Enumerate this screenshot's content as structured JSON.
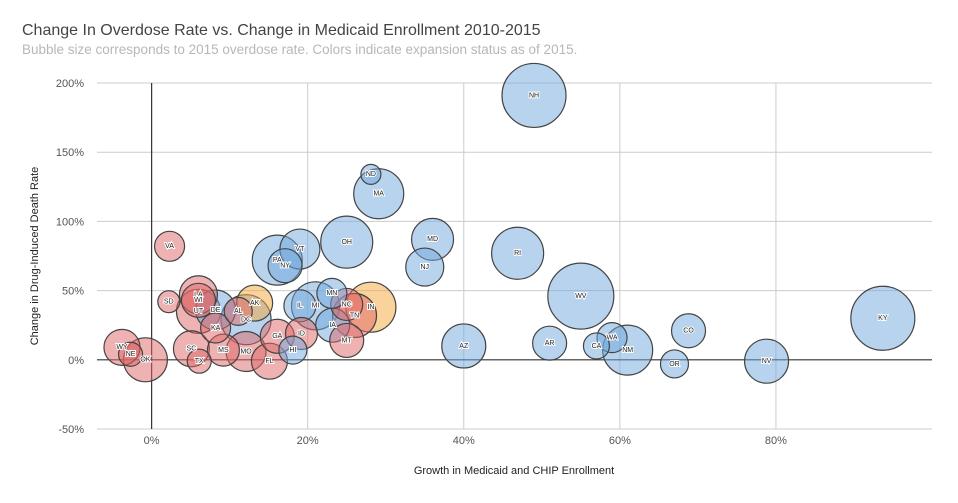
{
  "chart_data": {
    "type": "scatter",
    "subtype": "bubble",
    "title": "Change In Overdose Rate vs. Change in Medicaid Enrollment 2010-2015",
    "subtitle": "Bubble size corresponds to 2015 overdose rate. Colors indicate expansion status as of 2015.",
    "xlabel": "Growth in Medicaid and CHIP Enrollment",
    "ylabel": "Change in Drug-Induced Death Rate",
    "xlim": [
      -7,
      100
    ],
    "ylim": [
      -50,
      200
    ],
    "xticks": [
      0,
      20,
      40,
      60,
      80
    ],
    "xtick_labels": [
      "0%",
      "20%",
      "40%",
      "60%",
      "80%"
    ],
    "yticks": [
      200,
      150,
      100,
      50,
      0,
      -50
    ],
    "ytick_labels": [
      "200%",
      "150%",
      "100%",
      "50%",
      "0%",
      "-50%"
    ],
    "grid": true,
    "legend": "none",
    "colors": {
      "expanded": "#6fa8dc",
      "not_expanded": "#e06666",
      "expanded_during_2015": "#f6a53a"
    },
    "points": [
      {
        "label": "NH",
        "x": 49,
        "y": 191,
        "size": 32,
        "status": "expanded"
      },
      {
        "label": "MA",
        "x": 29.1,
        "y": 120,
        "size": 25,
        "status": "expanded"
      },
      {
        "label": "ND",
        "x": 28.1,
        "y": 134,
        "size": 10,
        "status": "expanded"
      },
      {
        "label": "MD",
        "x": 36,
        "y": 87,
        "size": 21,
        "status": "expanded"
      },
      {
        "label": "NJ",
        "x": 35,
        "y": 67,
        "size": 19,
        "status": "expanded"
      },
      {
        "label": "RI",
        "x": 46.9,
        "y": 77,
        "size": 26,
        "status": "expanded"
      },
      {
        "label": "OH",
        "x": 25,
        "y": 85,
        "size": 26,
        "status": "expanded"
      },
      {
        "label": "PA",
        "x": 16.1,
        "y": 72,
        "size": 25,
        "status": "expanded"
      },
      {
        "label": "VT",
        "x": 19,
        "y": 80,
        "size": 20,
        "status": "expanded"
      },
      {
        "label": "NY",
        "x": 17.1,
        "y": 68,
        "size": 17,
        "status": "expanded"
      },
      {
        "label": "VA",
        "x": 2.3,
        "y": 82,
        "size": 15,
        "status": "not_expanded"
      },
      {
        "label": "WV",
        "x": 55,
        "y": 46,
        "size": 33,
        "status": "expanded"
      },
      {
        "label": "KY",
        "x": 93.7,
        "y": 30,
        "size": 32,
        "status": "expanded"
      },
      {
        "label": "AZ",
        "x": 40,
        "y": 10,
        "size": 22,
        "status": "expanded"
      },
      {
        "label": "AR",
        "x": 51,
        "y": 12,
        "size": 17,
        "status": "expanded"
      },
      {
        "label": "NM",
        "x": 61,
        "y": 7,
        "size": 25,
        "status": "expanded"
      },
      {
        "label": "CA",
        "x": 57,
        "y": 10,
        "size": 13,
        "status": "expanded"
      },
      {
        "label": "WA",
        "x": 59,
        "y": 16,
        "size": 15,
        "status": "expanded"
      },
      {
        "label": "CO",
        "x": 68.8,
        "y": 21,
        "size": 17,
        "status": "expanded"
      },
      {
        "label": "OR",
        "x": 67,
        "y": -3,
        "size": 14,
        "status": "expanded"
      },
      {
        "label": "NV",
        "x": 78.8,
        "y": -1,
        "size": 22,
        "status": "expanded"
      },
      {
        "label": "DC",
        "x": 12.1,
        "y": 29,
        "size": 25,
        "status": "expanded"
      },
      {
        "label": "DE",
        "x": 8.2,
        "y": 36,
        "size": 20,
        "status": "expanded"
      },
      {
        "label": "MI",
        "x": 21,
        "y": 39,
        "size": 24,
        "status": "expanded"
      },
      {
        "label": "IL",
        "x": 19,
        "y": 39,
        "size": 16,
        "status": "expanded"
      },
      {
        "label": "MN",
        "x": 23.1,
        "y": 48,
        "size": 15,
        "status": "expanded"
      },
      {
        "label": "IA",
        "x": 23.2,
        "y": 25,
        "size": 17,
        "status": "expanded"
      },
      {
        "label": "HI",
        "x": 18.1,
        "y": 7,
        "size": 14,
        "status": "expanded"
      },
      {
        "label": "IN",
        "x": 28.1,
        "y": 38,
        "size": 25,
        "status": "expanded_during_2015"
      },
      {
        "label": "AK",
        "x": 13.2,
        "y": 41,
        "size": 18,
        "status": "expanded_during_2015"
      },
      {
        "label": "SD",
        "x": 2.2,
        "y": 42,
        "size": 11,
        "status": "not_expanded"
      },
      {
        "label": "LA",
        "x": 6,
        "y": 47,
        "size": 19,
        "status": "not_expanded"
      },
      {
        "label": "UT",
        "x": 6,
        "y": 35,
        "size": 22,
        "status": "not_expanded"
      },
      {
        "label": "WI",
        "x": 6,
        "y": 43,
        "size": 17,
        "status": "not_expanded"
      },
      {
        "label": "AL",
        "x": 11.1,
        "y": 35,
        "size": 14,
        "status": "not_expanded"
      },
      {
        "label": "KA",
        "x": 8.2,
        "y": 23,
        "size": 15,
        "status": "not_expanded"
      },
      {
        "label": "WY",
        "x": -3.8,
        "y": 9,
        "size": 18,
        "status": "not_expanded"
      },
      {
        "label": "NE",
        "x": -2.7,
        "y": 4,
        "size": 12,
        "status": "not_expanded"
      },
      {
        "label": "OK",
        "x": -0.8,
        "y": 0,
        "size": 22,
        "status": "not_expanded"
      },
      {
        "label": "SC",
        "x": 5.1,
        "y": 8,
        "size": 18,
        "status": "not_expanded"
      },
      {
        "label": "TX",
        "x": 6.1,
        "y": -1,
        "size": 12,
        "status": "not_expanded"
      },
      {
        "label": "MS",
        "x": 9.2,
        "y": 7,
        "size": 16,
        "status": "not_expanded"
      },
      {
        "label": "MO",
        "x": 12.1,
        "y": 6,
        "size": 20,
        "status": "not_expanded"
      },
      {
        "label": "FL",
        "x": 15.1,
        "y": -1,
        "size": 18,
        "status": "not_expanded"
      },
      {
        "label": "GA",
        "x": 16.1,
        "y": 17,
        "size": 17,
        "status": "not_expanded"
      },
      {
        "label": "ID",
        "x": 19.2,
        "y": 19,
        "size": 16,
        "status": "not_expanded"
      },
      {
        "label": "NC",
        "x": 25,
        "y": 40,
        "size": 16,
        "status": "not_expanded"
      },
      {
        "label": "TN",
        "x": 26,
        "y": 32,
        "size": 22,
        "status": "not_expanded"
      },
      {
        "label": "MT",
        "x": 25,
        "y": 14,
        "size": 17,
        "status": "not_expanded"
      }
    ]
  }
}
